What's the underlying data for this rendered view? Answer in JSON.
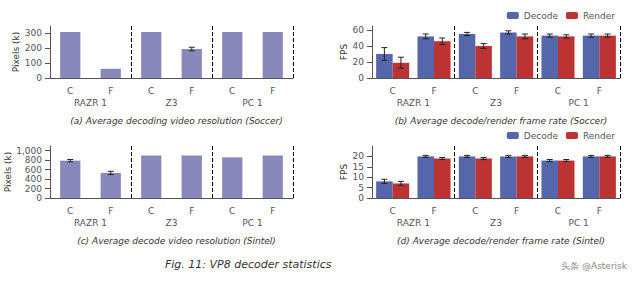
{
  "title": "Fig. 11: VP8 decoder statistics",
  "annotations": [
    "头条 @Asterisk"
  ],
  "chart_data": [
    {
      "type": "bar",
      "title": "(a) Average decoding video resolution (Soccer)",
      "ylabel": "Pixels (k)",
      "categories": [
        "C",
        "F",
        "C",
        "F",
        "C",
        "F"
      ],
      "groups": [
        "RAZR 1",
        "Z3",
        "PC 1"
      ],
      "values": [
        310,
        62,
        310,
        195,
        310,
        310
      ],
      "errors": [
        0,
        0,
        0,
        12,
        0,
        0
      ],
      "color": "#8888bb",
      "ylim": [
        0,
        350
      ],
      "yticks": [
        0,
        100,
        200,
        300
      ],
      "grid": false
    },
    {
      "type": "bar",
      "title": "(b) Average decode/render frame rate (Soccer)",
      "ylabel": "FPS",
      "categories": [
        "C",
        "F",
        "C",
        "F",
        "C",
        "F"
      ],
      "groups": [
        "RAZR 1",
        "Z3",
        "PC 1"
      ],
      "series": [
        {
          "name": "Decode",
          "color": "#5566aa",
          "values": [
            30,
            52,
            55,
            57,
            53,
            53
          ],
          "errors": [
            8,
            3,
            2,
            2,
            2,
            2
          ]
        },
        {
          "name": "Render",
          "color": "#bb3333",
          "values": [
            19,
            46,
            40,
            52,
            52,
            53
          ],
          "errors": [
            7,
            4,
            3,
            3,
            2,
            2
          ]
        }
      ],
      "ylim": [
        0,
        65
      ],
      "yticks": [
        0,
        20,
        40,
        60
      ],
      "grid": false,
      "legend": "upper right"
    },
    {
      "type": "bar",
      "title": "(c) Average decode video resolution (Sintel)",
      "ylabel": "Pixels (k)",
      "categories": [
        "C",
        "F",
        "C",
        "F",
        "C",
        "F"
      ],
      "groups": [
        "RAZR 1",
        "Z3",
        "PC 1"
      ],
      "values": [
        790,
        530,
        900,
        900,
        860,
        900
      ],
      "errors": [
        25,
        35,
        0,
        0,
        0,
        0
      ],
      "color": "#8888bb",
      "ylim": [
        0,
        1100
      ],
      "yticks": [
        0,
        200,
        400,
        600,
        800,
        {
          "value": 1000,
          "label": "1,000"
        }
      ],
      "grid": false
    },
    {
      "type": "bar",
      "title": "(d) Average decode/render frame rate (Sintel)",
      "ylabel": "FPS",
      "categories": [
        "C",
        "F",
        "C",
        "F",
        "C",
        "F"
      ],
      "groups": [
        "RAZR 1",
        "Z3",
        "PC 1"
      ],
      "series": [
        {
          "name": "Decode",
          "color": "#5566aa",
          "values": [
            8,
            20,
            20,
            20,
            18,
            20
          ],
          "errors": [
            1,
            0.5,
            0.5,
            0.5,
            0.5,
            0.5
          ]
        },
        {
          "name": "Render",
          "color": "#bb3333",
          "values": [
            7,
            19,
            19,
            20,
            18,
            20
          ],
          "errors": [
            1,
            0.5,
            0.5,
            0.5,
            0.5,
            0.5
          ]
        }
      ],
      "ylim": [
        0,
        25
      ],
      "yticks": [
        0,
        5,
        10,
        15,
        20
      ],
      "grid": false,
      "legend": "upper right"
    }
  ]
}
